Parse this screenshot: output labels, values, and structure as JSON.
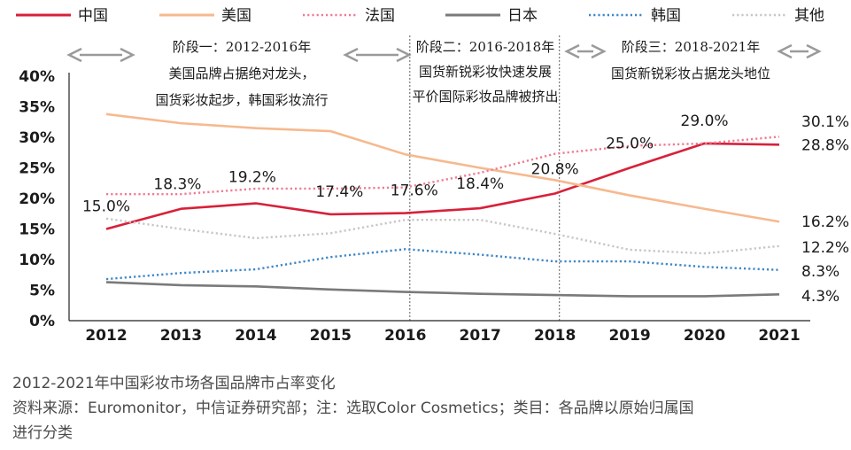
{
  "chart_data": {
    "type": "line",
    "title": "",
    "xlabel": "",
    "ylabel": "",
    "x": [
      "2012",
      "2013",
      "2014",
      "2015",
      "2016",
      "2017",
      "2018",
      "2019",
      "2020",
      "2021"
    ],
    "ylim": [
      0,
      40
    ],
    "yticks": [
      "0%",
      "5%",
      "10%",
      "15%",
      "20%",
      "25%",
      "30%",
      "35%",
      "40%"
    ],
    "grid": false,
    "legend_position": "top",
    "series": [
      {
        "name": "中国",
        "color": "#d7213a",
        "style": "solid",
        "values": [
          15.0,
          18.3,
          19.2,
          17.4,
          17.6,
          18.4,
          20.8,
          25.0,
          29.0,
          28.8
        ],
        "labels": [
          "15.0%",
          "18.3%",
          "19.2%",
          "17.4%",
          "17.6%",
          "18.4%",
          "20.8%",
          "25.0%",
          "29.0%",
          "28.8%"
        ]
      },
      {
        "name": "美国",
        "color": "#f6b98e",
        "style": "solid",
        "values": [
          33.8,
          32.3,
          31.5,
          31.0,
          27.2,
          25.0,
          23.0,
          20.5,
          18.3,
          16.2
        ],
        "labels": [
          "",
          "",
          "",
          "",
          "",
          "",
          "",
          "",
          "",
          "16.2%"
        ]
      },
      {
        "name": "法国",
        "color": "#ee7b93",
        "style": "dotted",
        "values": [
          20.7,
          20.7,
          21.6,
          21.6,
          21.8,
          24.2,
          27.3,
          28.6,
          29.0,
          30.1
        ],
        "labels": [
          "",
          "",
          "",
          "",
          "",
          "",
          "",
          "",
          "",
          "30.1%"
        ]
      },
      {
        "name": "日本",
        "color": "#7a7a7a",
        "style": "solid",
        "values": [
          6.3,
          5.8,
          5.6,
          5.1,
          4.7,
          4.4,
          4.2,
          4.0,
          4.0,
          4.3
        ],
        "labels": [
          "",
          "",
          "",
          "",
          "",
          "",
          "",
          "",
          "",
          "4.3%"
        ]
      },
      {
        "name": "韩国",
        "color": "#3d86c6",
        "style": "dotted",
        "values": [
          6.8,
          7.8,
          8.4,
          10.4,
          11.7,
          10.8,
          9.7,
          9.7,
          8.8,
          8.3
        ],
        "labels": [
          "",
          "",
          "",
          "",
          "",
          "",
          "",
          "",
          "",
          "8.3%"
        ]
      },
      {
        "name": "其他",
        "color": "#c6c6c6",
        "style": "dotted",
        "values": [
          16.7,
          15.0,
          13.5,
          14.3,
          16.5,
          16.5,
          14.2,
          11.6,
          11.0,
          12.2
        ],
        "labels": [
          "",
          "",
          "",
          "",
          "",
          "",
          "",
          "",
          "",
          "12.2%"
        ]
      }
    ],
    "annotations": [
      {
        "id": "phase1",
        "lines": [
          "阶段一：2012-2016年",
          "美国品牌占据绝对龙头，",
          "国货彩妆起步，韩国彩妆流行"
        ]
      },
      {
        "id": "phase2",
        "lines": [
          "阶段二：2016-2018年",
          "国货新锐彩妆快速发展",
          "平价国际彩妆品牌被挤出"
        ]
      },
      {
        "id": "phase3",
        "lines": [
          "阶段三：2018-2021年",
          "国货新锐彩妆占据龙头地位"
        ]
      }
    ],
    "phase_dividers": [
      "2016",
      "2018"
    ]
  },
  "caption": {
    "line1": "2012-2021年中国彩妆市场各国品牌市占率变化",
    "line2": "资料来源：Euromonitor，中信证券研究部；注：选取Color Cosmetics；类目：各品牌以原始归属国",
    "line3": "进行分类"
  }
}
